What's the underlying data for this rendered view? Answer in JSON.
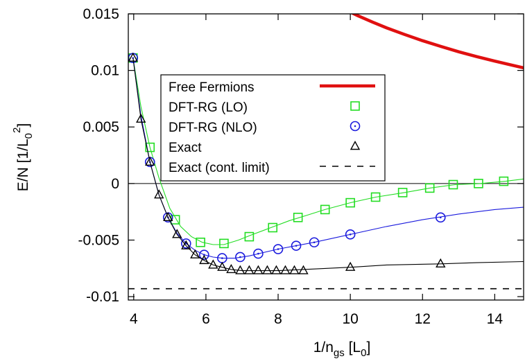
{
  "chart_data": {
    "type": "line",
    "xlabel": "1/n",
    "xlabel_sub": "gs",
    "xlabel_unit_open": " [L",
    "xlabel_unit_sub": "0",
    "xlabel_unit_close": "]",
    "ylabel": "E/N [1/L",
    "ylabel_sub": "0",
    "ylabel_sup": "2",
    "ylabel_close": "]",
    "xlim": [
      3.85,
      14.8
    ],
    "ylim": [
      -0.0103,
      0.015
    ],
    "xticks": [
      4,
      6,
      8,
      10,
      12,
      14
    ],
    "xtick_labels": [
      "4",
      "6",
      "8",
      "10",
      "12",
      "14"
    ],
    "yticks": [
      0.015,
      0.01,
      0.005,
      0,
      -0.005,
      -0.01
    ],
    "ytick_labels": [
      "0.015",
      "0.01",
      "0.005",
      "0",
      "-0.005",
      "-0.01"
    ],
    "zero_line": true,
    "legend_position": "upper-center",
    "series": [
      {
        "name": "Free Fermions",
        "style": "line",
        "color": "#e01010",
        "x": [
          9.5,
          9.8,
          10.2,
          10.6,
          11.0,
          11.5,
          12.0,
          12.5,
          13.0,
          13.5,
          14.0,
          14.5,
          14.8
        ],
        "y": [
          0.01595,
          0.01546,
          0.01485,
          0.01429,
          0.01377,
          0.01318,
          0.01263,
          0.01213,
          0.01165,
          0.01122,
          0.01082,
          0.01045,
          0.01023
        ]
      },
      {
        "name": "DFT-RG (LO)",
        "style": "square",
        "color": "#22dd22",
        "x": [
          3.98,
          4.45,
          5.15,
          5.85,
          6.5,
          7.2,
          7.85,
          8.55,
          9.3,
          10.0,
          10.7,
          11.45,
          12.2,
          12.85,
          13.55,
          14.25
        ],
        "y": [
          0.0111,
          0.0032,
          -0.0032,
          -0.0052,
          -0.0053,
          -0.0047,
          -0.0039,
          -0.003,
          -0.0023,
          -0.0017,
          -0.0012,
          -0.0008,
          -0.0004,
          -0.0001,
          0.0,
          0.0002
        ],
        "curve_x": [
          3.98,
          4.2,
          4.45,
          4.7,
          5.0,
          5.3,
          5.6,
          5.9,
          6.2,
          6.5,
          6.9,
          7.3,
          7.8,
          8.3,
          8.8,
          9.3,
          10.0,
          10.7,
          11.5,
          12.2,
          12.9,
          13.6,
          14.3,
          14.8
        ],
        "curve_y": [
          0.0111,
          0.0068,
          0.0032,
          0.0005,
          -0.0022,
          -0.0038,
          -0.0047,
          -0.0052,
          -0.0054,
          -0.0054,
          -0.005,
          -0.0045,
          -0.0039,
          -0.0033,
          -0.0028,
          -0.0023,
          -0.0017,
          -0.0012,
          -0.0008,
          -0.0004,
          -0.0001,
          0.0,
          0.0002,
          0.0004
        ]
      },
      {
        "name": "DFT-RG (NLO)",
        "style": "circle",
        "color": "#1a1add",
        "x": [
          3.98,
          4.45,
          4.95,
          5.45,
          5.95,
          6.45,
          6.95,
          7.45,
          8.0,
          8.5,
          9.0,
          10.0,
          12.5
        ],
        "y": [
          0.0111,
          0.0019,
          -0.003,
          -0.0053,
          -0.0063,
          -0.0066,
          -0.0065,
          -0.0062,
          -0.0058,
          -0.0055,
          -0.0052,
          -0.0045,
          -0.003
        ],
        "curve_x": [
          3.98,
          4.2,
          4.45,
          4.7,
          4.95,
          5.2,
          5.45,
          5.7,
          5.95,
          6.2,
          6.45,
          6.8,
          7.2,
          7.6,
          8.0,
          8.5,
          9.0,
          10.0,
          11.0,
          12.0,
          13.0,
          14.0,
          14.8
        ],
        "curve_y": [
          0.0111,
          0.006,
          0.0019,
          -0.001,
          -0.003,
          -0.0044,
          -0.0053,
          -0.0059,
          -0.0063,
          -0.0065,
          -0.0066,
          -0.0066,
          -0.0064,
          -0.0061,
          -0.0058,
          -0.0055,
          -0.0052,
          -0.0045,
          -0.0038,
          -0.0032,
          -0.0027,
          -0.0023,
          -0.0021
        ]
      },
      {
        "name": "Exact",
        "style": "triangle",
        "color": "#000000",
        "x": [
          3.98,
          4.2,
          4.45,
          4.7,
          4.95,
          5.2,
          5.45,
          5.7,
          5.95,
          6.2,
          6.45,
          6.7,
          6.95,
          7.2,
          7.45,
          7.7,
          7.95,
          8.2,
          8.45,
          8.7,
          10.0,
          12.5
        ],
        "y": [
          0.0111,
          0.0057,
          0.0019,
          -0.001,
          -0.003,
          -0.0045,
          -0.0055,
          -0.0063,
          -0.0068,
          -0.0072,
          -0.0074,
          -0.0076,
          -0.0077,
          -0.0077,
          -0.0077,
          -0.0077,
          -0.0077,
          -0.0077,
          -0.0077,
          -0.0077,
          -0.0074,
          -0.0071
        ],
        "curve_x": [
          3.98,
          4.2,
          4.45,
          4.7,
          4.95,
          5.2,
          5.45,
          5.7,
          5.95,
          6.2,
          6.45,
          6.7,
          7.0,
          7.5,
          8.0,
          8.7,
          10.0,
          11.0,
          12.5,
          13.5,
          14.8
        ],
        "curve_y": [
          0.0111,
          0.0057,
          0.0019,
          -0.001,
          -0.003,
          -0.0045,
          -0.0055,
          -0.0063,
          -0.0068,
          -0.0072,
          -0.0074,
          -0.0076,
          -0.0077,
          -0.0077,
          -0.0077,
          -0.0076,
          -0.0074,
          -0.0072,
          -0.0071,
          -0.007,
          -0.0069
        ]
      },
      {
        "name": "Exact (cont. limit)",
        "style": "dashed",
        "color": "#000000",
        "y_value": -0.0093
      }
    ]
  }
}
